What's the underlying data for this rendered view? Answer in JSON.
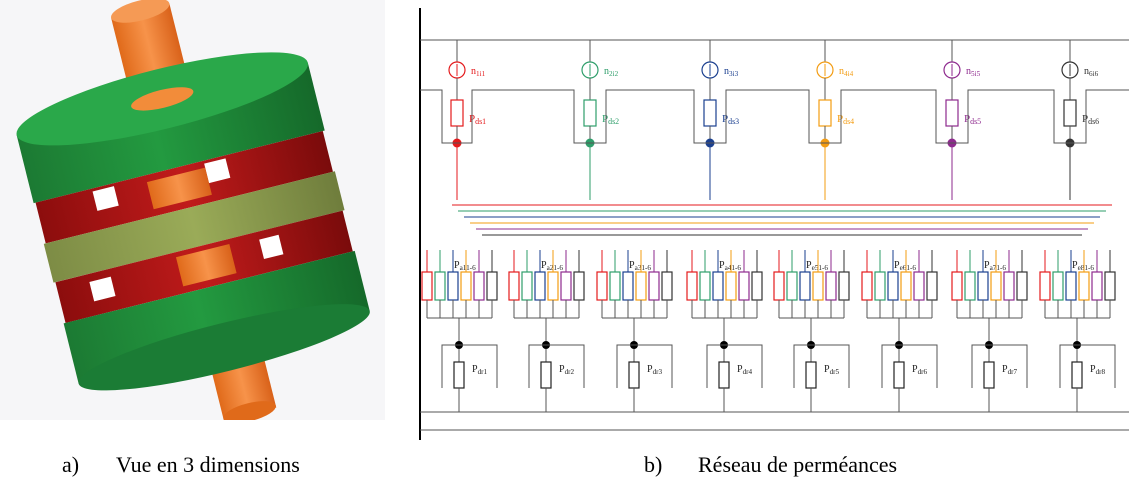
{
  "captions": {
    "a": {
      "letter": "a)",
      "text": "Vue en 3 dimensions"
    },
    "b": {
      "letter": "b)",
      "text": "Réseau de perméances"
    }
  },
  "colors": {
    "phases": [
      "#e41a1c",
      "#2e9e6a",
      "#1a3f8f",
      "#f39c12",
      "#8e2a8e",
      "#333333"
    ],
    "green": "#1f8a3a",
    "red": "#b41414",
    "olive": "#8a9a4a",
    "orange": "#f07f2a"
  },
  "sources": [
    {
      "label": "n1i1",
      "color_index": 0
    },
    {
      "label": "n2i2",
      "color_index": 1
    },
    {
      "label": "n3i3",
      "color_index": 2
    },
    {
      "label": "n4i4",
      "color_index": 3
    },
    {
      "label": "n5i5",
      "color_index": 4
    },
    {
      "label": "n6i6",
      "color_index": 5
    }
  ],
  "top_permeances": [
    "Pds1",
    "Pds2",
    "Pds3",
    "Pds4",
    "Pds5",
    "Pds6"
  ],
  "group_labels": [
    "Pa11-6",
    "Pa21-6",
    "Pa31-6",
    "Pa41-6",
    "Pe51-6",
    "Pe61-6",
    "Pa71-6",
    "Pe81-6"
  ],
  "bottom_permeances": [
    "Pdr1",
    "Pdr2",
    "Pdr3",
    "Pdr4",
    "Pdr5",
    "Pdr6",
    "Pdr7",
    "Pdr8"
  ]
}
